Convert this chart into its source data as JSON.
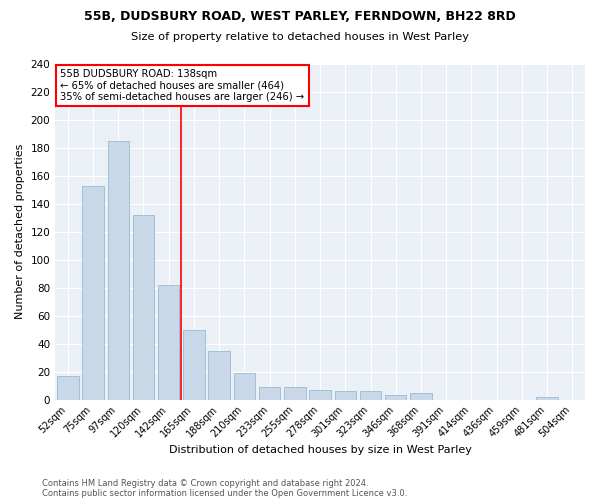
{
  "title": "55B, DUDSBURY ROAD, WEST PARLEY, FERNDOWN, BH22 8RD",
  "subtitle": "Size of property relative to detached houses in West Parley",
  "xlabel": "Distribution of detached houses by size in West Parley",
  "ylabel": "Number of detached properties",
  "bar_color": "#c8d8e8",
  "bar_edge_color": "#8ab4cc",
  "background_color": "#eaf0f6",
  "grid_color": "#ffffff",
  "categories": [
    "52sqm",
    "75sqm",
    "97sqm",
    "120sqm",
    "142sqm",
    "165sqm",
    "188sqm",
    "210sqm",
    "233sqm",
    "255sqm",
    "278sqm",
    "301sqm",
    "323sqm",
    "346sqm",
    "368sqm",
    "391sqm",
    "414sqm",
    "436sqm",
    "459sqm",
    "481sqm",
    "504sqm"
  ],
  "values": [
    17,
    153,
    185,
    132,
    82,
    50,
    35,
    19,
    9,
    9,
    7,
    6,
    6,
    3,
    5,
    0,
    0,
    0,
    0,
    2,
    0
  ],
  "red_line_index": 4.5,
  "annotation_title": "55B DUDSBURY ROAD: 138sqm",
  "annotation_line1": "← 65% of detached houses are smaller (464)",
  "annotation_line2": "35% of semi-detached houses are larger (246) →",
  "footnote1": "Contains HM Land Registry data © Crown copyright and database right 2024.",
  "footnote2": "Contains public sector information licensed under the Open Government Licence v3.0.",
  "ylim": [
    0,
    240
  ],
  "yticks": [
    0,
    20,
    40,
    60,
    80,
    100,
    120,
    140,
    160,
    180,
    200,
    220,
    240
  ]
}
